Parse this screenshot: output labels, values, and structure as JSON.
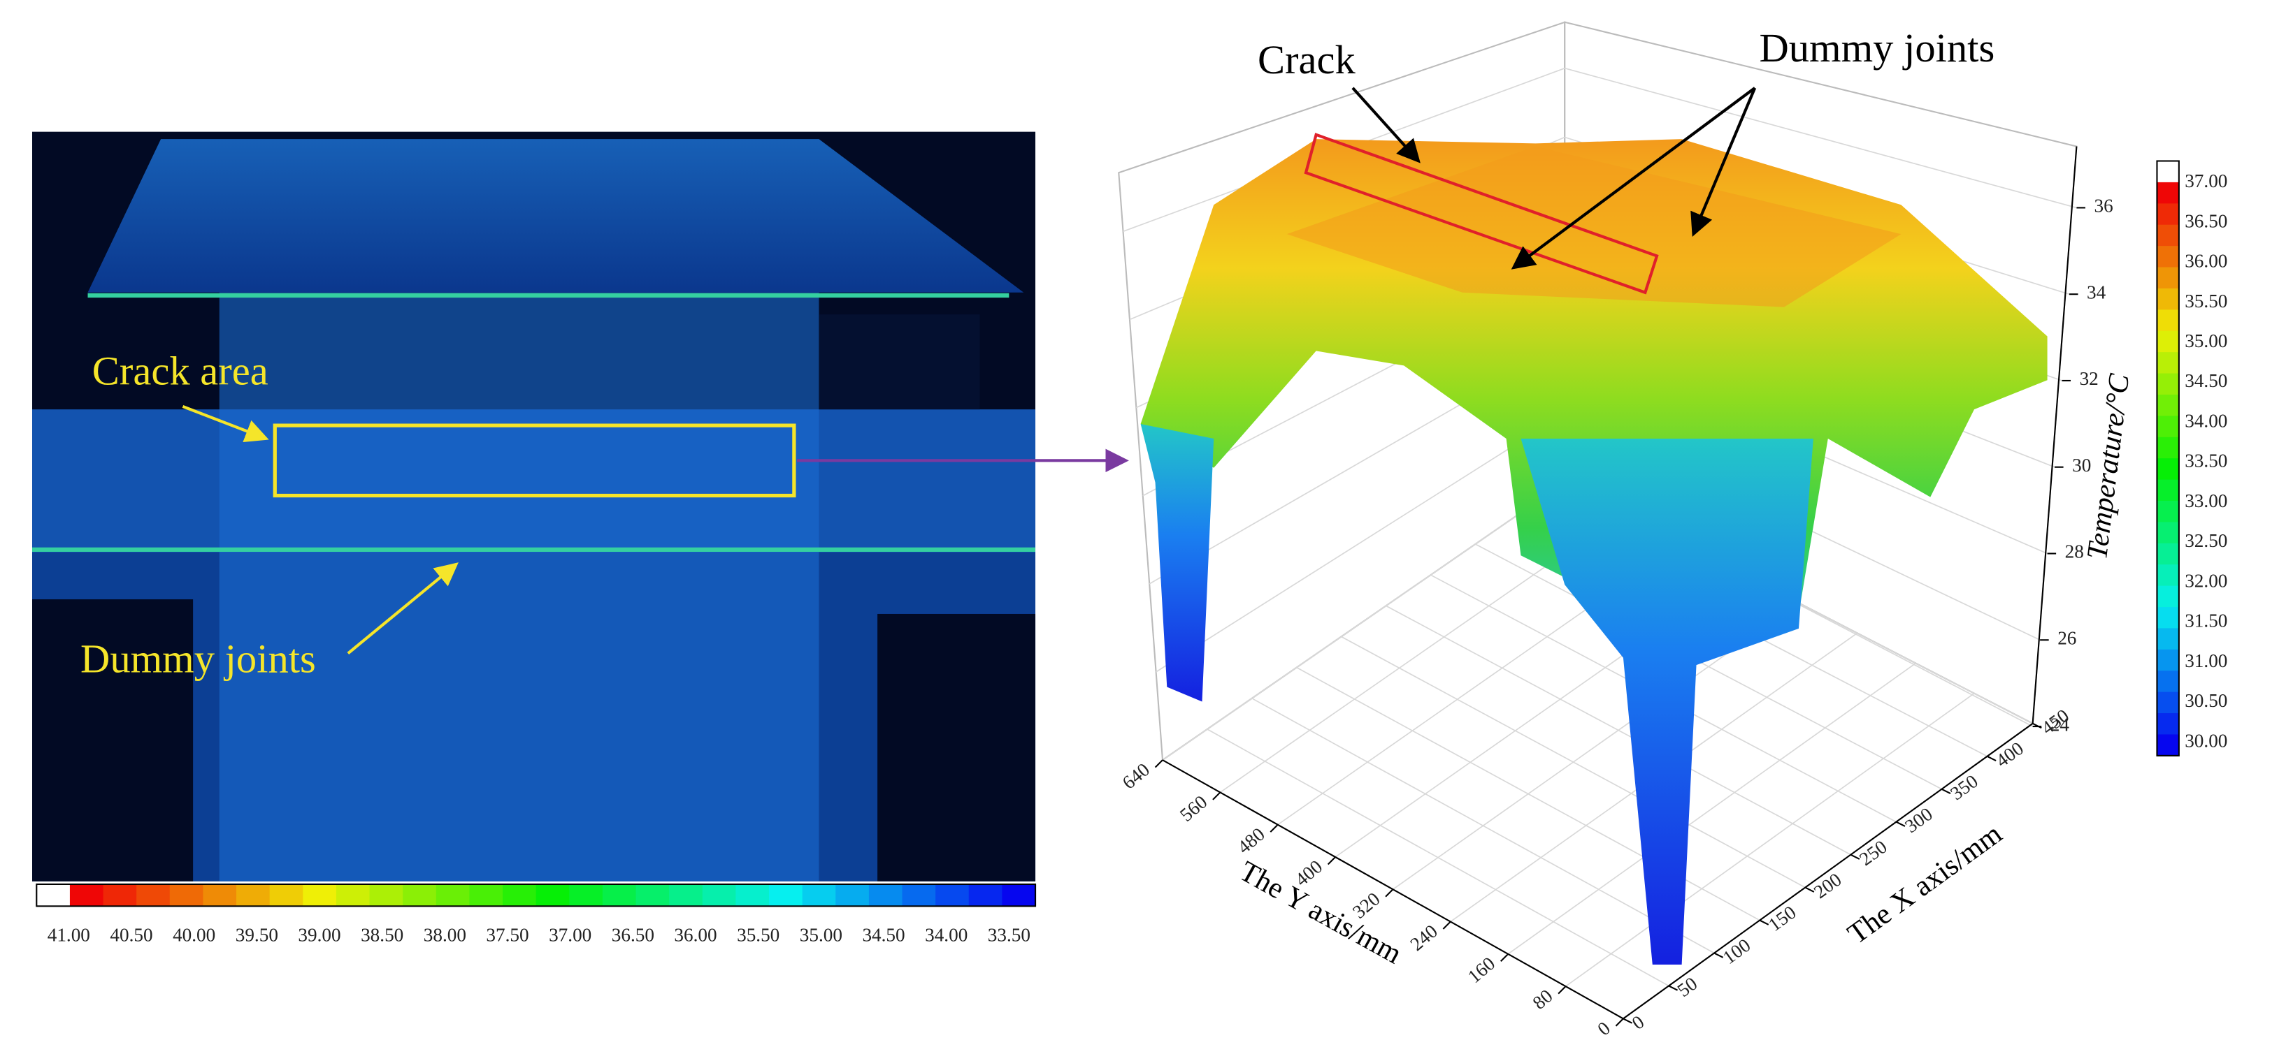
{
  "left_panel": {
    "labels": {
      "crack_area": "Crack area",
      "dummy_joints": "Dummy joints"
    },
    "colorbar_ticks": [
      "41.00",
      "40.50",
      "40.00",
      "39.50",
      "39.00",
      "38.50",
      "38.00",
      "37.50",
      "37.00",
      "36.50",
      "36.00",
      "35.50",
      "35.00",
      "34.50",
      "34.00",
      "33.50"
    ]
  },
  "right_panel": {
    "annotations": {
      "crack": "Crack",
      "dummy_joints": "Dummy joints"
    },
    "z_axis": {
      "title": "Temperature/°C",
      "ticks": [
        "24",
        "26",
        "28",
        "30",
        "32",
        "34",
        "36"
      ]
    },
    "y_axis": {
      "title": "The Y axis/mm",
      "ticks": [
        "640",
        "560",
        "480",
        "400",
        "320",
        "240",
        "160",
        "80",
        "0"
      ]
    },
    "x_axis": {
      "title": "The X axis/mm",
      "ticks": [
        "0",
        "50",
        "100",
        "150",
        "200",
        "250",
        "300",
        "350",
        "400",
        "450"
      ]
    },
    "colorbar_ticks": [
      "37.00",
      "36.50",
      "36.00",
      "35.50",
      "35.00",
      "34.50",
      "34.00",
      "33.50",
      "33.00",
      "32.50",
      "32.00",
      "31.50",
      "31.00",
      "30.50",
      "30.00"
    ]
  }
}
